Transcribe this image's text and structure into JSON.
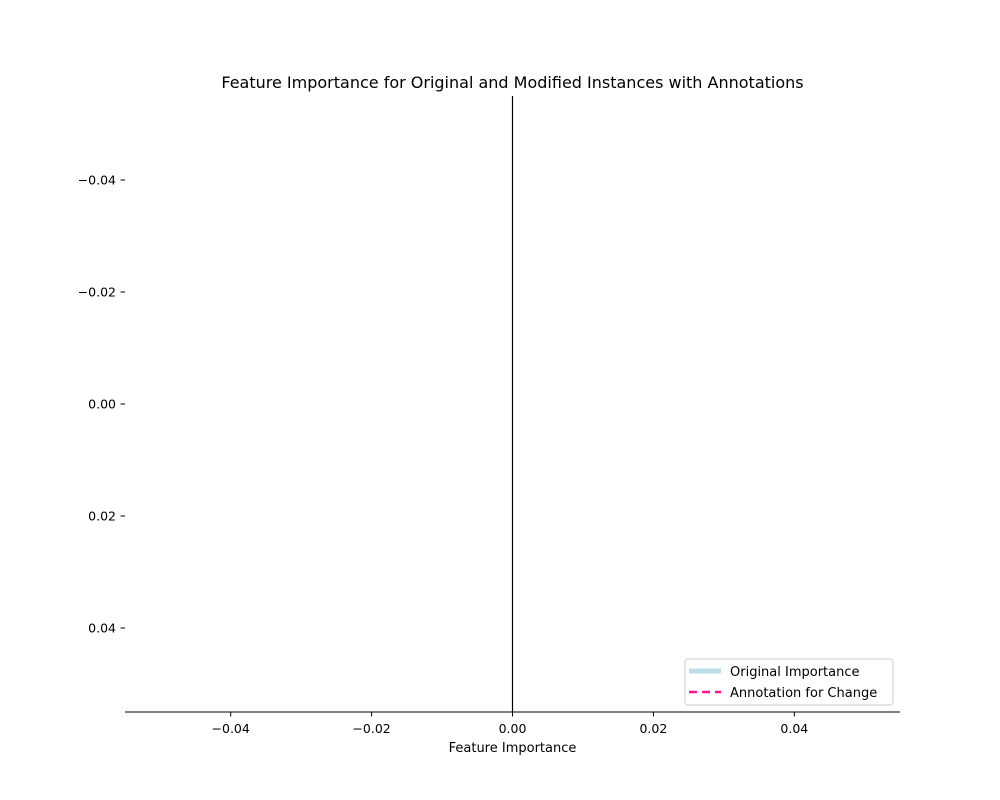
{
  "chart_data": {
    "type": "bar",
    "orientation": "horizontal",
    "title": "Feature Importance for Original and Modified Instances with Annotations",
    "xlabel": "Feature Importance",
    "ylabel": "",
    "xlim": [
      -0.055,
      0.055
    ],
    "ylim": [
      -0.055,
      0.055
    ],
    "y_inverted": true,
    "grid": false,
    "x_ticks": [
      -0.04,
      -0.02,
      0.0,
      0.02,
      0.04
    ],
    "x_tick_labels": [
      "−0.04",
      "−0.02",
      "0.00",
      "0.02",
      "0.04"
    ],
    "y_ticks": [
      -0.04,
      -0.02,
      0.0,
      0.02,
      0.04
    ],
    "y_tick_labels": [
      "−0.04",
      "−0.02",
      "0.00",
      "0.02",
      "0.04"
    ],
    "zero_line_x": 0.0,
    "categories": [],
    "series": [
      {
        "name": "Original Importance",
        "values": [],
        "color": "#add8e6",
        "style": "solid"
      },
      {
        "name": "Annotation for Change",
        "values": [],
        "color": "#ff1493",
        "style": "dashed"
      }
    ],
    "legend_placement": "lower-right"
  }
}
